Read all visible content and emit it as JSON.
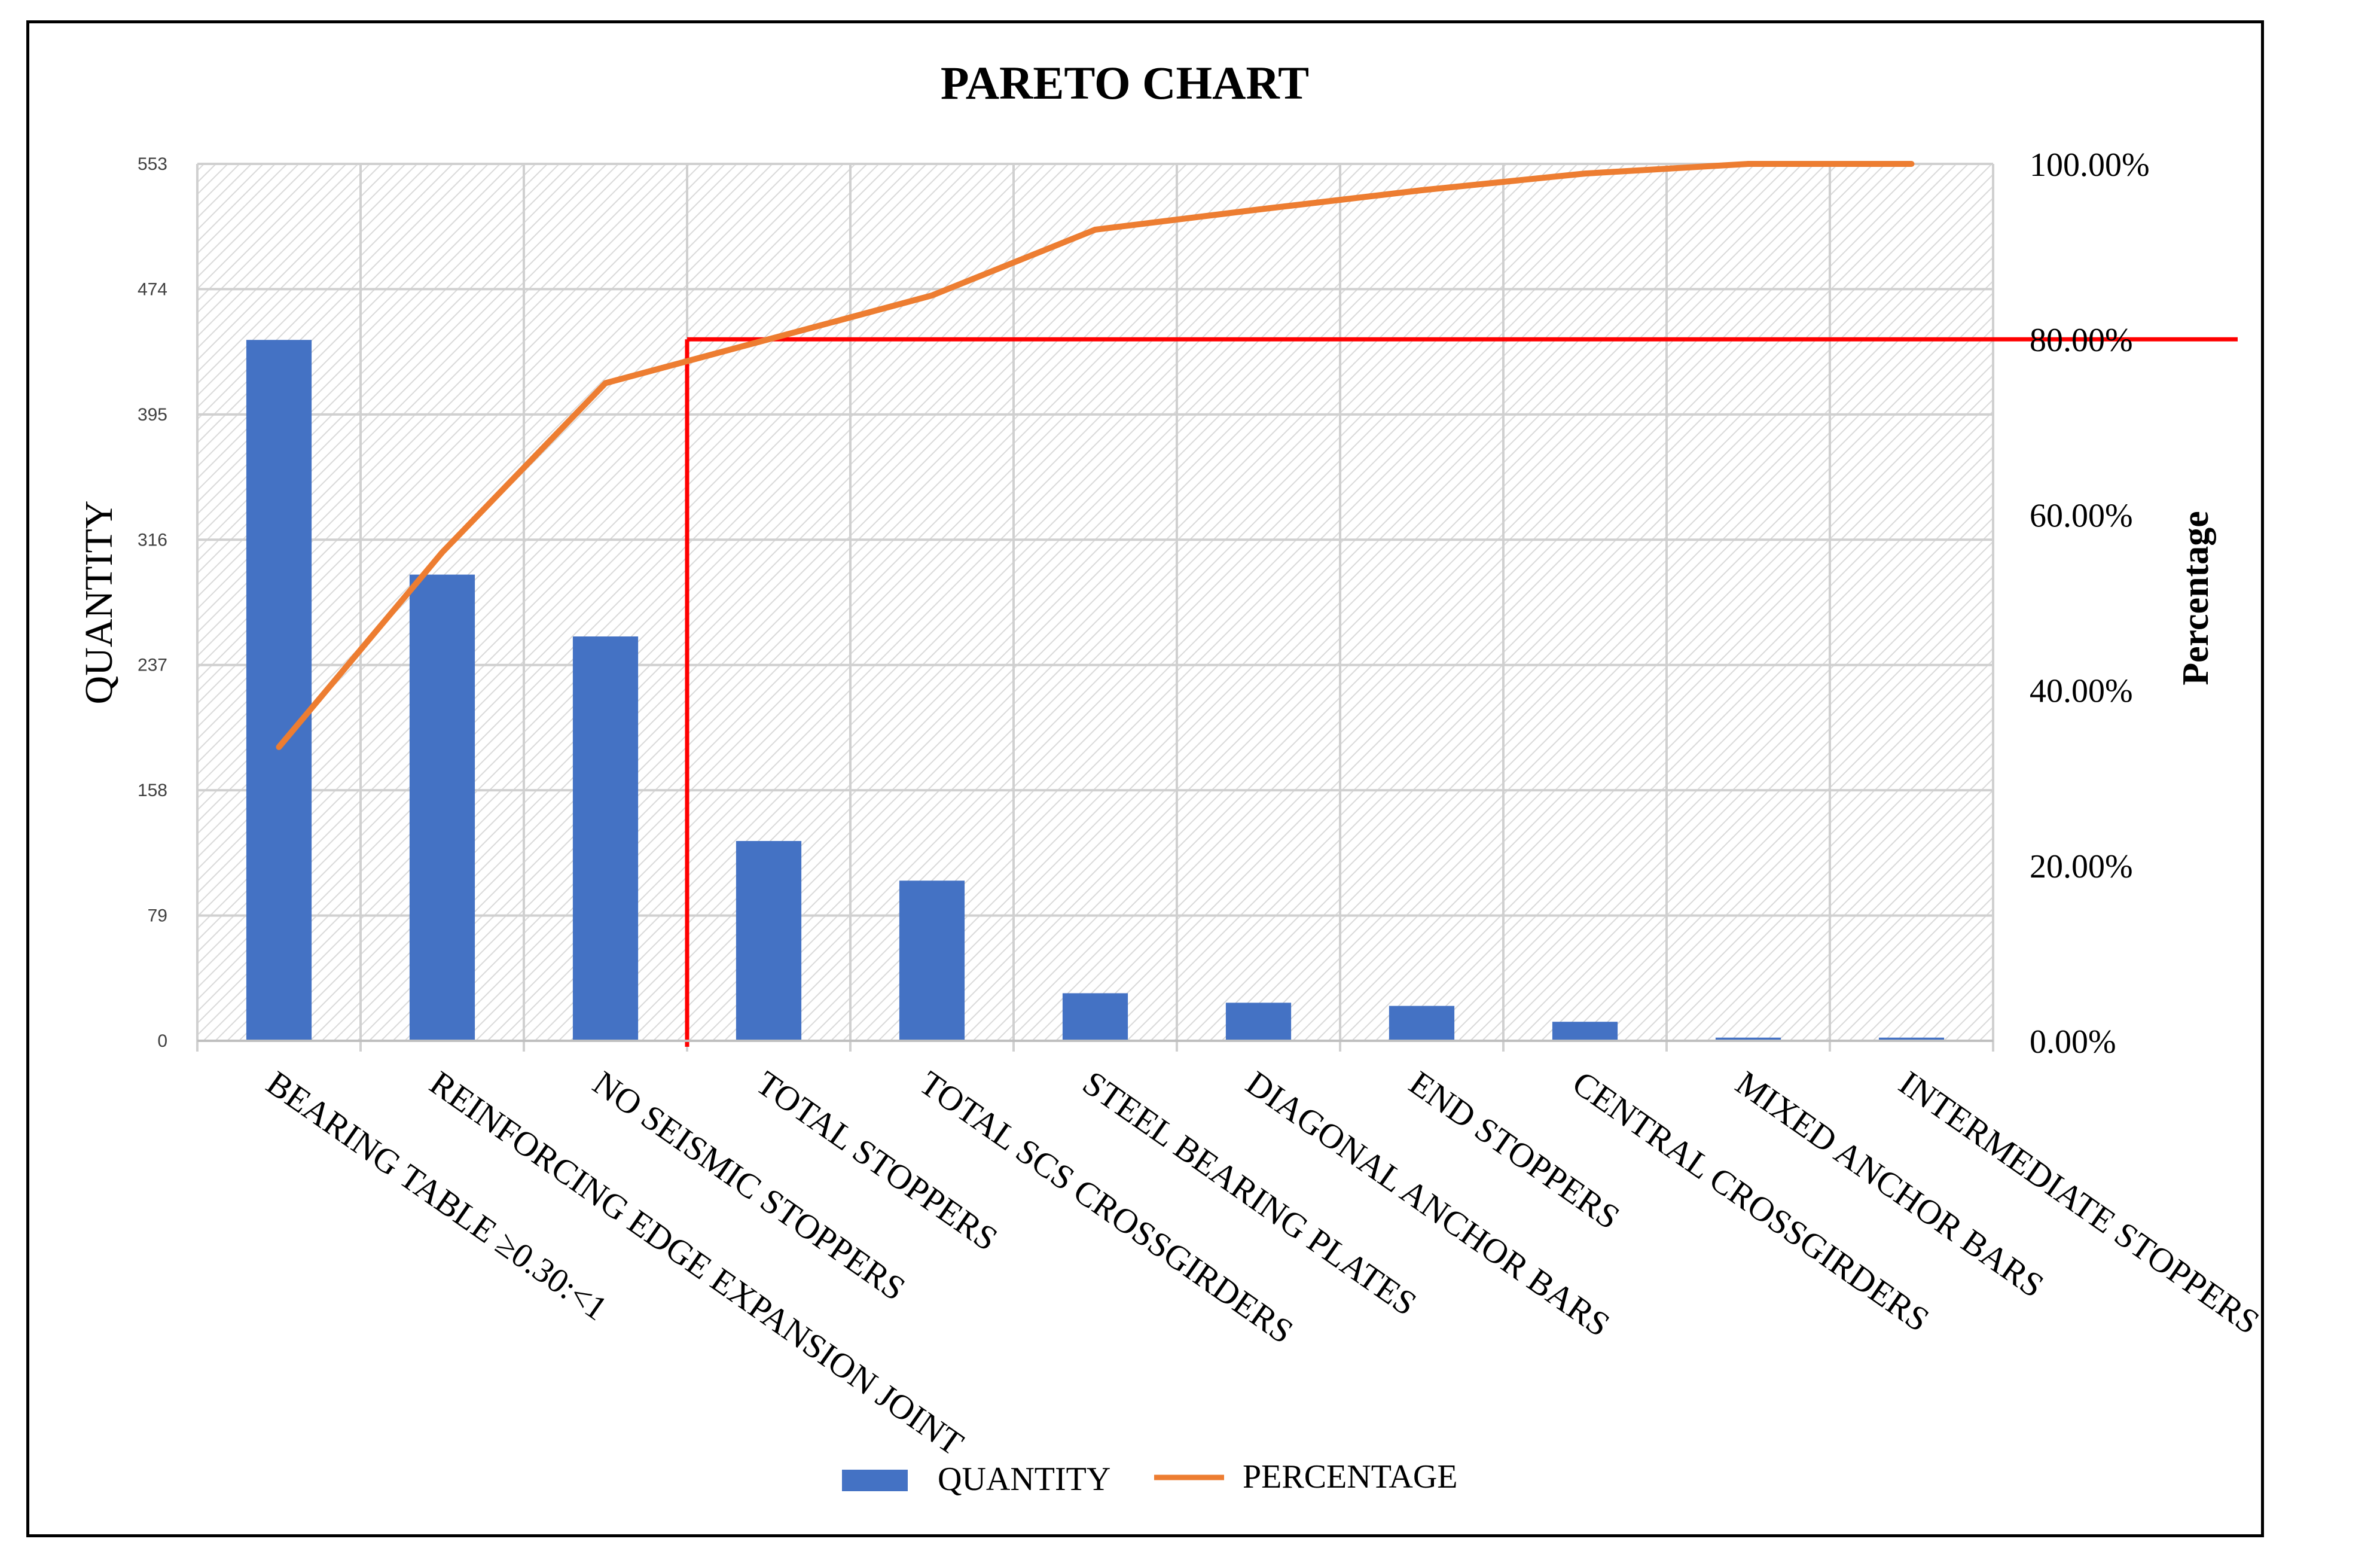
{
  "chart_data": {
    "type": "bar",
    "title": "PARETO CHART",
    "xlabel": "",
    "ylabel": "QUANTITY",
    "y2label": "Percentage",
    "categories": [
      "BEARING TABLE ≥0.30:<1",
      "REINFORCING EDGE EXPANSION JOINT",
      "NO SEISMIC STOPPERS",
      "TOTAL STOPPERS",
      "TOTAL SCS CROSSGIRDERS",
      "STEEL BEARING PLATES",
      "DIAGONAL ANCHOR BARS",
      "END STOPPERS",
      "CENTRAL CROSSGIRDERS",
      "MIXED ANCHOR BARS",
      "INTERMEDIATE STOPPERS"
    ],
    "series": [
      {
        "name": "QUANTITY",
        "type": "bar",
        "axis": "left",
        "color": "#4472C4",
        "values": [
          442,
          294,
          255,
          126,
          101,
          30,
          24,
          22,
          12,
          2,
          2
        ]
      },
      {
        "name": "PERCENTAGE",
        "type": "line",
        "axis": "right",
        "color": "#ED7D31",
        "values": [
          33.5,
          55.7,
          75.0,
          80.0,
          85.0,
          92.5,
          94.8,
          97.0,
          98.9,
          100.0,
          100.0
        ]
      }
    ],
    "ylim": [
      0,
      553
    ],
    "yticks": [
      "0",
      "79",
      "158",
      "237",
      "316",
      "395",
      "474",
      "553"
    ],
    "y2lim": [
      0,
      100
    ],
    "y2ticks": [
      "0.00%",
      "20.00%",
      "40.00%",
      "60.00%",
      "80.00%",
      "100.00%"
    ],
    "threshold": {
      "percent": 80,
      "category_index": 3,
      "color": "#FF0000"
    },
    "grid": true,
    "legend": "bottom",
    "legend_entries": [
      "QUANTITY",
      "PERCENTAGE"
    ]
  }
}
